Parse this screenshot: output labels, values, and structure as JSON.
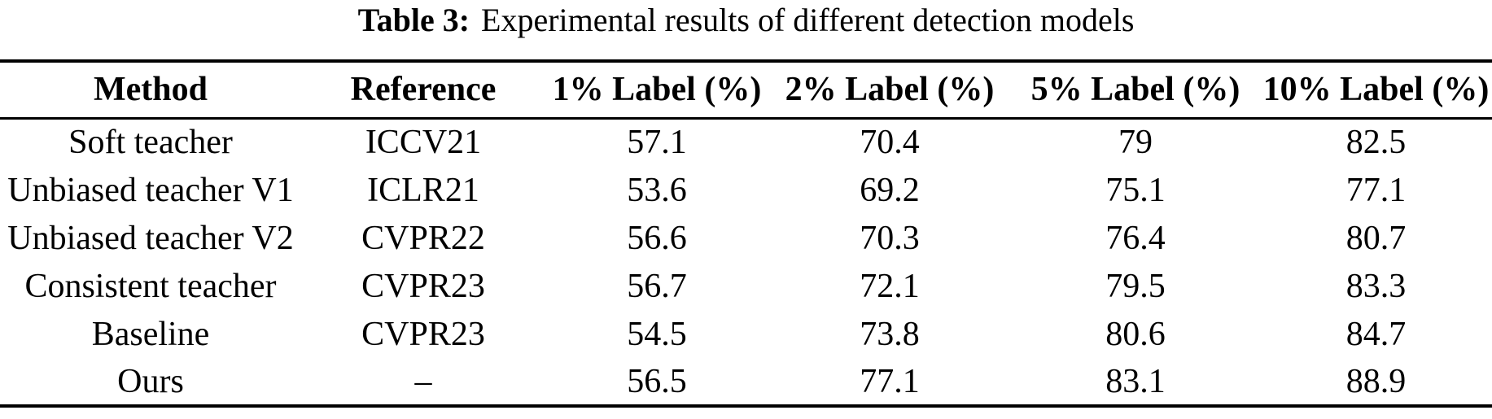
{
  "caption": {
    "label": "Table 3:",
    "text": "Experimental results of different detection models"
  },
  "table": {
    "columns": [
      "Method",
      "Reference",
      "1% Label (%)",
      "2% Label (%)",
      "5% Label (%)",
      "10% Label (%)"
    ],
    "rows": [
      [
        "Soft teacher",
        "ICCV21",
        "57.1",
        "70.4",
        "79",
        "82.5"
      ],
      [
        "Unbiased teacher V1",
        "ICLR21",
        "53.6",
        "69.2",
        "75.1",
        "77.1"
      ],
      [
        "Unbiased teacher V2",
        "CVPR22",
        "56.6",
        "70.3",
        "76.4",
        "80.7"
      ],
      [
        "Consistent teacher",
        "CVPR23",
        "56.7",
        "72.1",
        "79.5",
        "83.3"
      ],
      [
        "Baseline",
        "CVPR23",
        "54.5",
        "73.8",
        "80.6",
        "84.7"
      ],
      [
        "Ours",
        "–",
        "56.5",
        "77.1",
        "83.1",
        "88.9"
      ]
    ]
  },
  "colors": {
    "background": "#ffffff",
    "text": "#000000",
    "rule": "#000000"
  }
}
